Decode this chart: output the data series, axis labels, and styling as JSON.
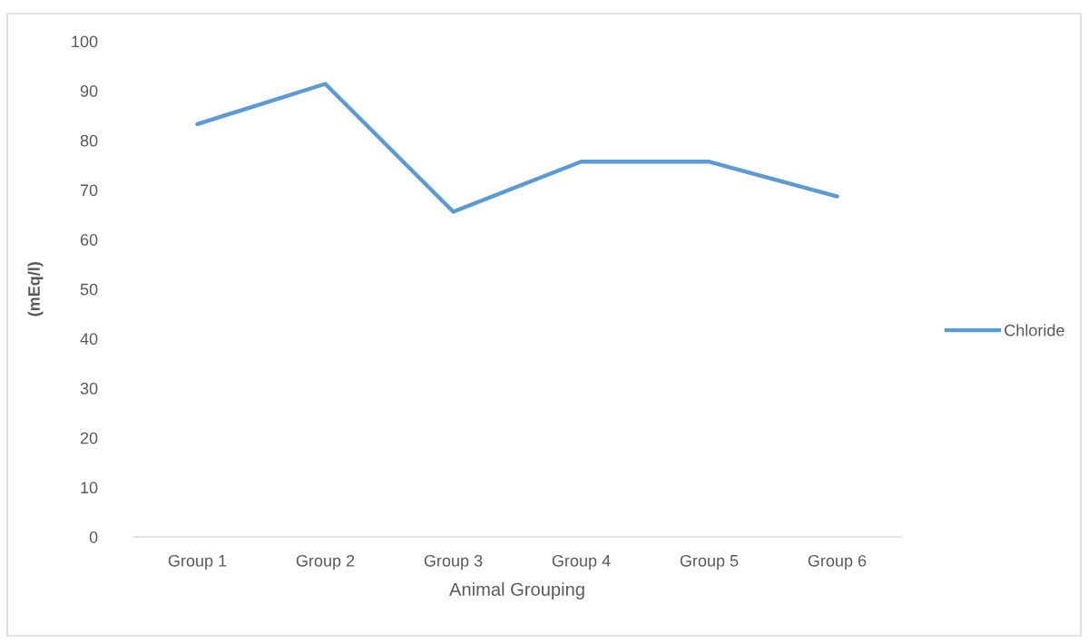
{
  "chart_data": {
    "type": "line",
    "xlabel": "Animal Grouping",
    "ylabel": "(mEq/l)",
    "categories": [
      "Group 1",
      "Group 2",
      "Group 3",
      "Group 4",
      "Group 5",
      "Group 6"
    ],
    "series": [
      {
        "name": "Chloride",
        "color": "#5b9bd5",
        "values": [
          83.3,
          91.4,
          65.6,
          75.7,
          75.7,
          68.7
        ]
      }
    ],
    "ylim": [
      0,
      100
    ],
    "yticks": [
      0,
      10,
      20,
      30,
      40,
      50,
      60,
      70,
      80,
      90,
      100
    ],
    "legend": "right",
    "marker": "none",
    "line_style": "solid"
  }
}
